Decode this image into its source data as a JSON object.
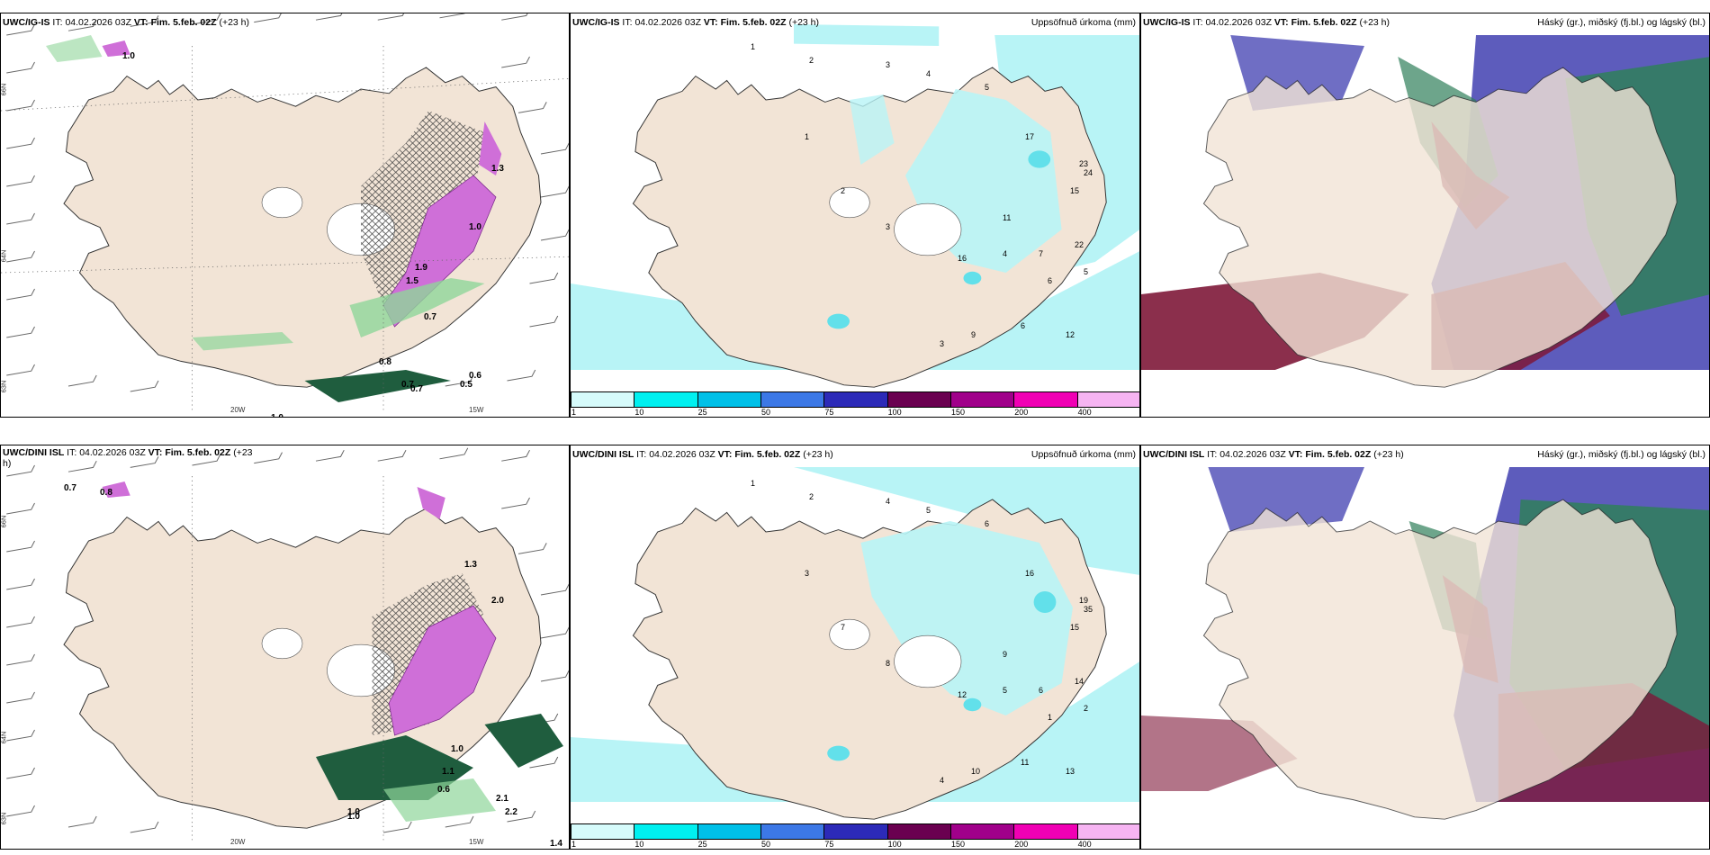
{
  "colors": {
    "land": "#f2e4d6",
    "sea_white": "#ffffff",
    "precip_light": "#b8f4f6",
    "precip_mid": "#62e0ea",
    "snow_pink": "#d36ddb",
    "green_band": "#2e8b57",
    "dark_green": "#1f5d3e",
    "high_cloud": "#4b4ab5",
    "mid_cloud": "#7e1838",
    "low_cloud": "#2f7f5a"
  },
  "panels": {
    "top_left": {
      "model": "UWC/IG-IS",
      "it_label": "IT:",
      "it_value": "04.02.2026 03Z",
      "vt_label": "VT:",
      "vt_value": "Fim. 5.feb. 02Z",
      "lead": "(+23 h)",
      "lat_labels": [
        "66N",
        "64N",
        "63N"
      ],
      "lon_labels": [
        "20W",
        "15W"
      ],
      "values": [
        "1.9",
        "1.5",
        "1.0",
        "0.7",
        "0.8",
        "0.7",
        "0.5",
        "1.0",
        "0.7",
        "0.6",
        "1.0",
        "1.3"
      ]
    },
    "top_mid": {
      "model": "UWC/IG-IS",
      "it_label": "IT:",
      "it_value": "04.02.2026 03Z",
      "vt_label": "VT:",
      "vt_value": "Fim. 5.feb. 02Z",
      "lead": "(+23 h)",
      "right_title": "Uppsöfnuð úrkoma (mm)",
      "colorbar": [
        "1",
        "10",
        "25",
        "50",
        "75",
        "100",
        "150",
        "200",
        "400"
      ],
      "colorbar_colors": [
        "#d6fbfb",
        "#00f0f0",
        "#00c0e8",
        "#3c78e6",
        "#2c2ab8",
        "#6a0050",
        "#a0008a",
        "#f000b4",
        "#f6b4f2"
      ],
      "numbers": [
        "1",
        "2",
        "3",
        "4",
        "5",
        "17",
        "23",
        "24",
        "15",
        "22",
        "12",
        "6",
        "9",
        "16",
        "11",
        "3",
        "2",
        "1",
        "5",
        "6",
        "7",
        "4",
        "3"
      ]
    },
    "top_right": {
      "model": "UWC/IG-IS",
      "it_label": "IT:",
      "it_value": "04.02.2026 03Z",
      "vt_label": "VT:",
      "vt_value": "Fim. 5.feb. 02Z",
      "lead": "(+23 h)",
      "right_title": "Háský (gr.), miðský (fj.bl.) og lágský (bl.)"
    },
    "bot_left": {
      "model": "UWC/DINI ISL",
      "it_label": "IT:",
      "it_value": "04.02.2026 03Z",
      "vt_label": "VT:",
      "vt_value": "Fim. 5.feb. 02Z",
      "lead_partial": "(+23",
      "lead_wrap": "h)",
      "lat_labels": [
        "66N",
        "64N",
        "63N"
      ],
      "lon_labels": [
        "20W",
        "15W"
      ],
      "values": [
        "0.7",
        "0.8",
        "1.3",
        "1.0",
        "1.1",
        "0.6",
        "1.0",
        "2.1",
        "2.2",
        "1.4",
        "1.0",
        "2.0"
      ]
    },
    "bot_mid": {
      "model": "UWC/DINI ISL",
      "it_label": "IT:",
      "it_value": "04.02.2026 03Z",
      "vt_label": "VT:",
      "vt_value": "Fim. 5.feb. 02Z",
      "lead": "(+23 h)",
      "right_title": "Uppsöfnuð úrkoma (mm)",
      "colorbar": [
        "1",
        "10",
        "25",
        "50",
        "75",
        "100",
        "150",
        "200",
        "400"
      ],
      "colorbar_colors": [
        "#d6fbfb",
        "#00f0f0",
        "#00c0e8",
        "#3c78e6",
        "#2c2ab8",
        "#6a0050",
        "#a0008a",
        "#f000b4",
        "#f6b4f2"
      ],
      "numbers": [
        "1",
        "2",
        "4",
        "5",
        "6",
        "16",
        "19",
        "35",
        "15",
        "14",
        "13",
        "11",
        "10",
        "12",
        "9",
        "8",
        "7",
        "3",
        "2",
        "1",
        "6",
        "5",
        "4"
      ]
    },
    "bot_right": {
      "model": "UWC/DINI ISL",
      "it_label": "IT:",
      "it_value": "04.02.2026 03Z",
      "vt_label": "VT:",
      "vt_value": "Fim. 5.feb. 02Z",
      "lead": "(+23 h)",
      "right_title": "Háský (gr.), miðský (fj.bl.) og lágský (bl.)"
    }
  }
}
